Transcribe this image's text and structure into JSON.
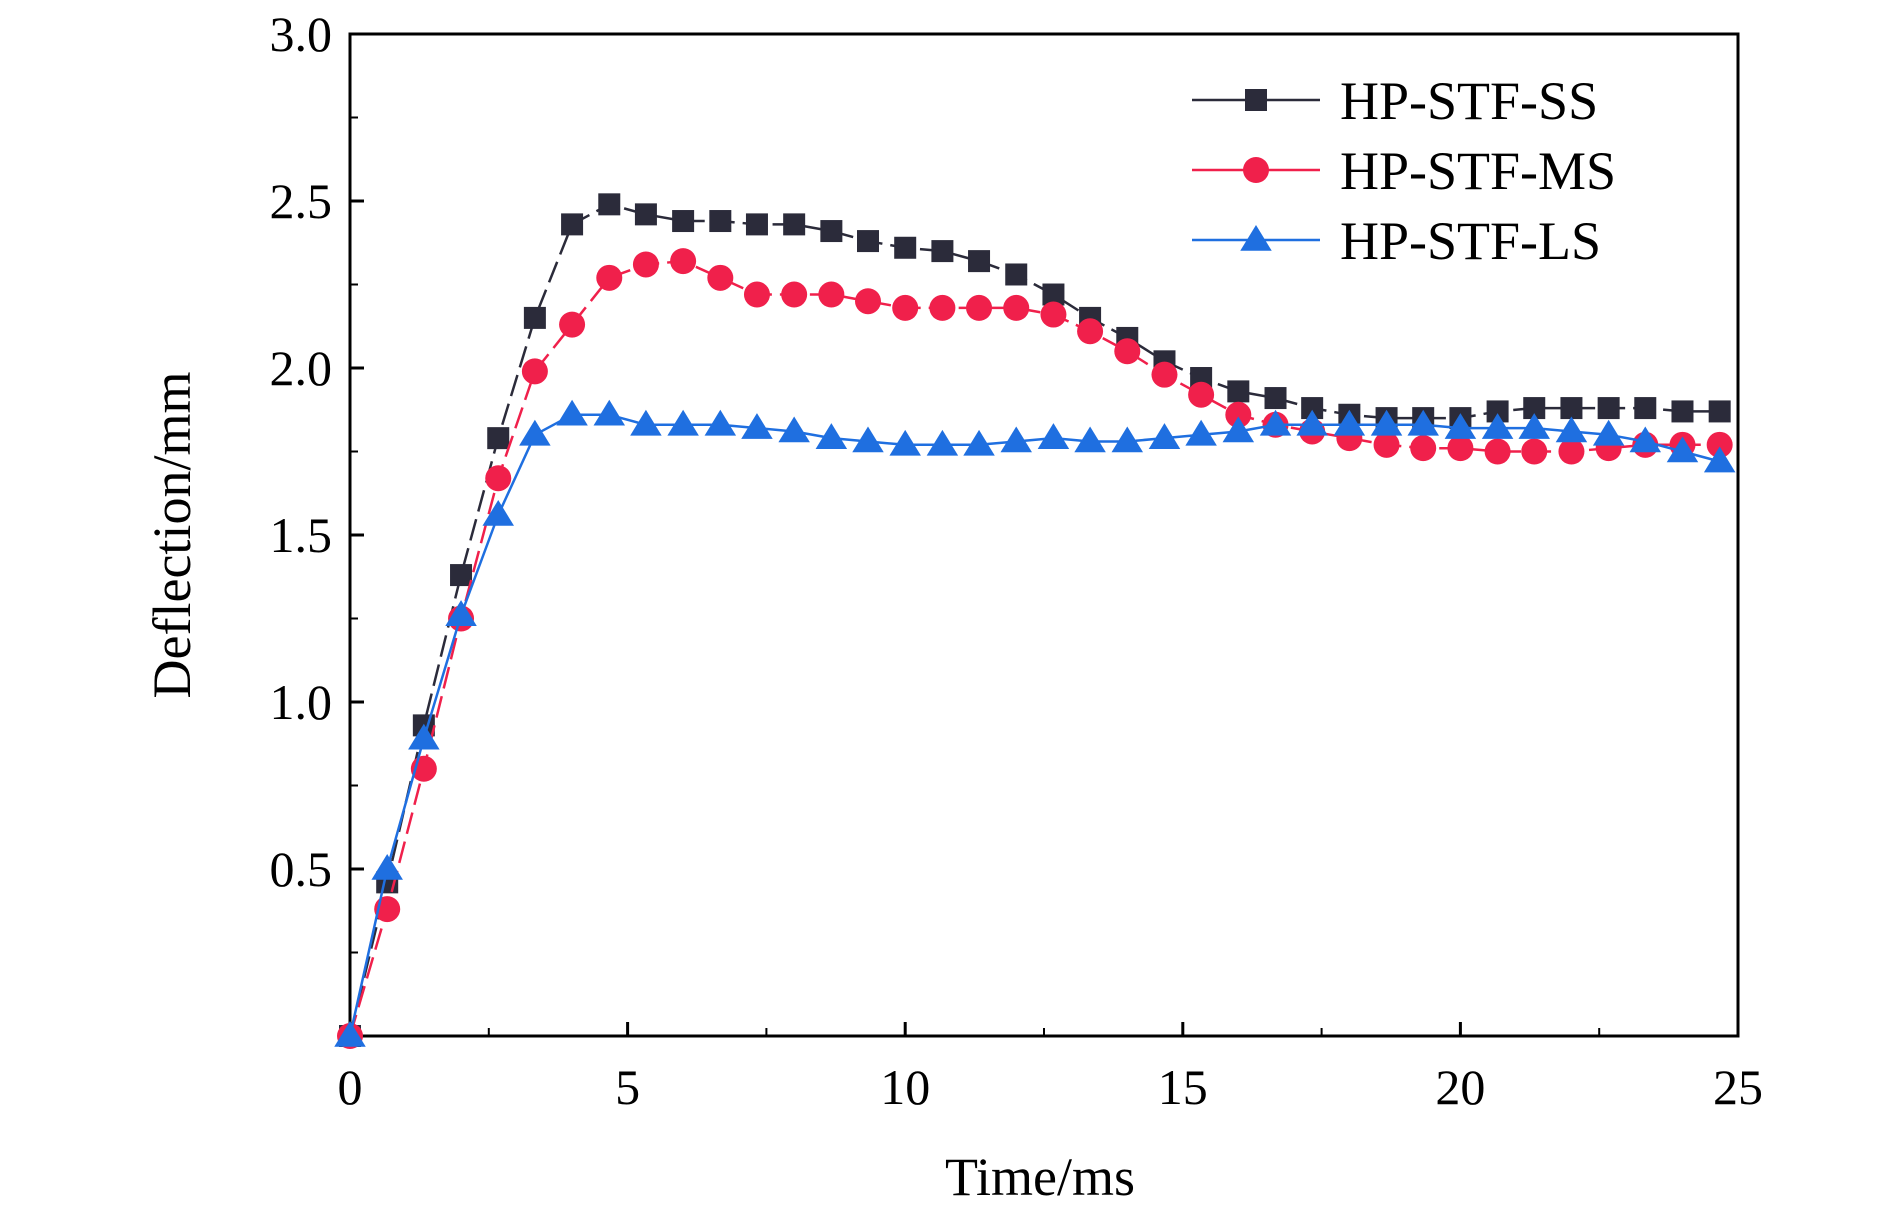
{
  "chart_data": {
    "type": "line",
    "title": "",
    "xlabel": "Time/ms",
    "ylabel": "Deflection/mm",
    "xlim": [
      0,
      25
    ],
    "ylim": [
      0,
      3.0
    ],
    "x_ticks": [
      0,
      5,
      10,
      15,
      20,
      25
    ],
    "x_tick_labels": [
      "0",
      "5",
      "10",
      "15",
      "20",
      "25"
    ],
    "y_ticks": [
      0.5,
      1.0,
      1.5,
      2.0,
      2.5,
      3.0
    ],
    "y_tick_labels": [
      "0.5",
      "1.0",
      "1.5",
      "2.0",
      "2.5",
      "3.0"
    ],
    "grid": false,
    "legend_position": "top-right",
    "series": [
      {
        "name": "HP-STF-SS",
        "color": "#2b2b3a",
        "marker": "square",
        "line_style": "dashed",
        "x": [
          0,
          0.67,
          1.33,
          2.0,
          2.67,
          3.33,
          4.0,
          4.67,
          5.33,
          6.0,
          6.67,
          7.33,
          8.0,
          8.67,
          9.33,
          10.0,
          10.67,
          11.33,
          12.0,
          12.67,
          13.33,
          14.0,
          14.67,
          15.33,
          16.0,
          16.67,
          17.33,
          18.0,
          18.67,
          19.33,
          20.0,
          20.67,
          21.33,
          22.0,
          22.67,
          23.33,
          24.0,
          24.67
        ],
        "y": [
          0,
          0.46,
          0.93,
          1.38,
          1.79,
          2.15,
          2.43,
          2.49,
          2.46,
          2.44,
          2.44,
          2.43,
          2.43,
          2.41,
          2.38,
          2.36,
          2.35,
          2.32,
          2.28,
          2.22,
          2.15,
          2.09,
          2.02,
          1.97,
          1.93,
          1.91,
          1.88,
          1.86,
          1.85,
          1.85,
          1.85,
          1.87,
          1.88,
          1.88,
          1.88,
          1.88,
          1.87,
          1.87
        ]
      },
      {
        "name": "HP-STF-MS",
        "color": "#f0204b",
        "marker": "circle",
        "line_style": "dashed",
        "x": [
          0,
          0.67,
          1.33,
          2.0,
          2.67,
          3.33,
          4.0,
          4.67,
          5.33,
          6.0,
          6.67,
          7.33,
          8.0,
          8.67,
          9.33,
          10.0,
          10.67,
          11.33,
          12.0,
          12.67,
          13.33,
          14.0,
          14.67,
          15.33,
          16.0,
          16.67,
          17.33,
          18.0,
          18.67,
          19.33,
          20.0,
          20.67,
          21.33,
          22.0,
          22.67,
          23.33,
          24.0,
          24.67
        ],
        "y": [
          0,
          0.38,
          0.8,
          1.25,
          1.67,
          1.99,
          2.13,
          2.27,
          2.31,
          2.32,
          2.27,
          2.22,
          2.22,
          2.22,
          2.2,
          2.18,
          2.18,
          2.18,
          2.18,
          2.16,
          2.11,
          2.05,
          1.98,
          1.92,
          1.86,
          1.83,
          1.81,
          1.79,
          1.77,
          1.76,
          1.76,
          1.75,
          1.75,
          1.75,
          1.76,
          1.77,
          1.77,
          1.77
        ]
      },
      {
        "name": "HP-STF-LS",
        "color": "#1f6fe0",
        "marker": "triangle",
        "line_style": "solid",
        "x": [
          0,
          0.67,
          1.33,
          2.0,
          2.67,
          3.33,
          4.0,
          4.67,
          5.33,
          6.0,
          6.67,
          7.33,
          8.0,
          8.67,
          9.33,
          10.0,
          10.67,
          11.33,
          12.0,
          12.67,
          13.33,
          14.0,
          14.67,
          15.33,
          16.0,
          16.67,
          17.33,
          18.0,
          18.67,
          19.33,
          20.0,
          20.67,
          21.33,
          22.0,
          22.67,
          23.33,
          24.0,
          24.67
        ],
        "y": [
          0,
          0.5,
          0.89,
          1.26,
          1.56,
          1.8,
          1.86,
          1.86,
          1.83,
          1.83,
          1.83,
          1.82,
          1.81,
          1.79,
          1.78,
          1.77,
          1.77,
          1.77,
          1.78,
          1.79,
          1.78,
          1.78,
          1.79,
          1.8,
          1.81,
          1.83,
          1.83,
          1.83,
          1.83,
          1.83,
          1.82,
          1.82,
          1.82,
          1.81,
          1.8,
          1.78,
          1.75,
          1.72
        ]
      }
    ]
  }
}
